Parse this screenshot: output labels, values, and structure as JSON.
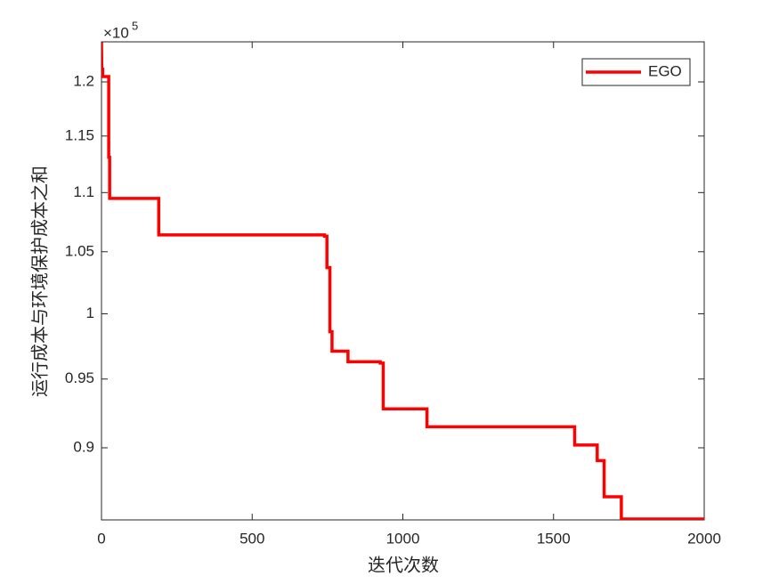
{
  "chart_data": {
    "type": "line",
    "xlabel": "迭代次数",
    "ylabel": "运行成本与环境保护成本之和",
    "y_exponent_base": "×10",
    "y_exponent": "5",
    "xlim": [
      0,
      2000
    ],
    "xticks": [
      0,
      500,
      1000,
      1500,
      2000
    ],
    "ylim": [
      0.8504,
      1.2384
    ],
    "yticks": [
      0.9,
      0.95,
      1,
      1.05,
      1.1,
      1.15,
      1.2
    ],
    "y_scale": "log",
    "grid": false,
    "legend_position": "northeast",
    "x": [
      0,
      1,
      4,
      4,
      24,
      24,
      27,
      27,
      190,
      190,
      740,
      740,
      748,
      748,
      758,
      758,
      765,
      765,
      818,
      818,
      925,
      925,
      935,
      935,
      1080,
      1080,
      1570,
      1570,
      1645,
      1645,
      1668,
      1668,
      1725,
      1725,
      2000
    ],
    "series": [
      {
        "name": "EGO",
        "color": "#ff0000",
        "values": [
          1.238,
          1.212,
          1.212,
          1.205,
          1.205,
          1.131,
          1.131,
          1.095,
          1.095,
          1.064,
          1.064,
          1.063,
          1.063,
          1.037,
          1.037,
          0.986,
          0.986,
          0.971,
          0.971,
          0.963,
          0.963,
          0.962,
          0.962,
          0.928,
          0.928,
          0.915,
          0.915,
          0.902,
          0.902,
          0.891,
          0.891,
          0.866,
          0.866,
          0.851,
          0.851
        ]
      }
    ]
  }
}
